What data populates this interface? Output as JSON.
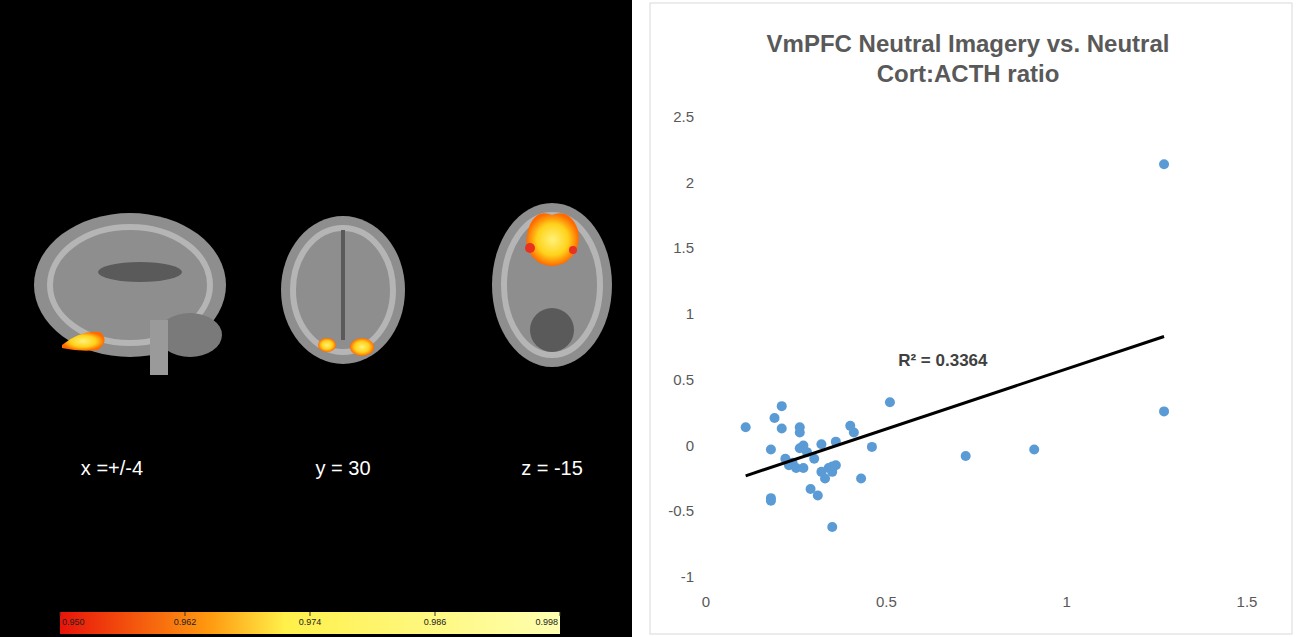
{
  "brain_panel": {
    "slice_labels": [
      "x =+/-4",
      "y = 30",
      "z = -15"
    ],
    "colorbar": {
      "range": [
        0.95,
        0.998
      ],
      "ticks": [
        {
          "value": 0.95,
          "label": "0.950"
        },
        {
          "value": 0.962,
          "label": "0.962"
        },
        {
          "value": 0.974,
          "label": "0.974"
        },
        {
          "value": 0.986,
          "label": "0.986"
        },
        {
          "value": 0.998,
          "label": "0.998"
        }
      ]
    }
  },
  "chart_data": {
    "type": "scatter",
    "title": "VmPFC Neutral Imagery vs. Neutral Cort:ACTH ratio",
    "color": "#5b9bd5",
    "marker": "circle",
    "x": [
      0.11,
      0.18,
      0.19,
      0.21,
      0.18,
      0.18,
      0.21,
      0.22,
      0.23,
      0.24,
      0.25,
      0.26,
      0.26,
      0.26,
      0.27,
      0.27,
      0.28,
      0.29,
      0.3,
      0.31,
      0.32,
      0.32,
      0.33,
      0.34,
      0.35,
      0.35,
      0.35,
      0.36,
      0.36,
      0.4,
      0.41,
      0.43,
      0.46,
      0.51,
      0.72,
      0.91,
      1.27,
      1.27
    ],
    "values": [
      0.14,
      -0.03,
      0.21,
      0.3,
      -0.4,
      -0.42,
      0.13,
      -0.1,
      -0.15,
      -0.13,
      -0.17,
      0.14,
      0.1,
      -0.02,
      0.0,
      -0.17,
      -0.05,
      -0.33,
      -0.1,
      -0.38,
      0.01,
      -0.2,
      -0.25,
      -0.17,
      -0.2,
      -0.16,
      -0.62,
      0.03,
      -0.15,
      0.15,
      0.1,
      -0.25,
      -0.01,
      0.33,
      -0.08,
      -0.03,
      2.14,
      0.26
    ],
    "trendline": {
      "x": [
        0.11,
        1.27
      ],
      "values": [
        -0.23,
        0.83
      ]
    },
    "annotation": "R² = 0.3364",
    "xlim": [
      0,
      1.5
    ],
    "xticks": [
      0,
      0.5,
      1,
      1.5
    ],
    "ylim": [
      -1,
      2.5
    ],
    "yticks": [
      -1,
      -0.5,
      0,
      0.5,
      1,
      1.5,
      2,
      2.5
    ],
    "grid": false
  }
}
